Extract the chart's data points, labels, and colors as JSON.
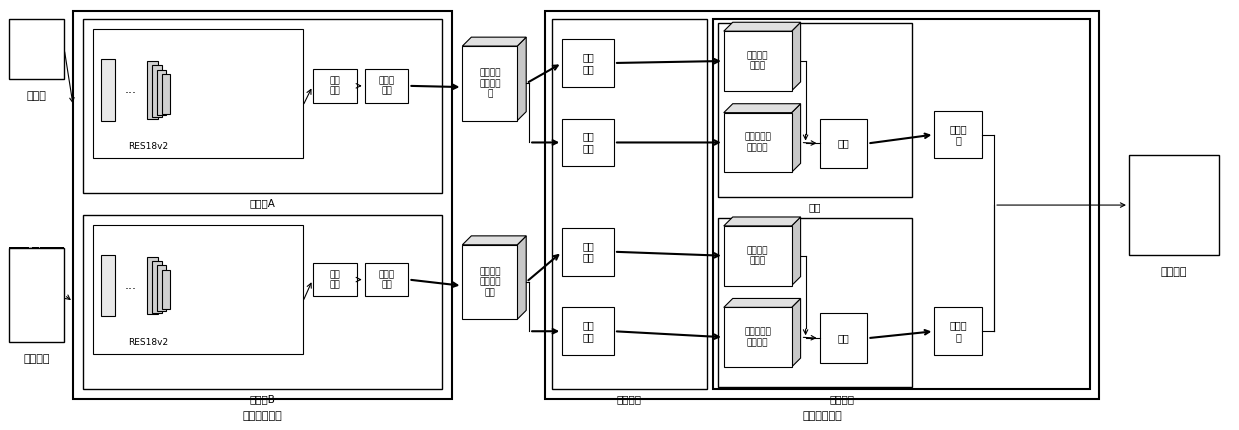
{
  "bg_color": "#ffffff",
  "labels": {
    "mubanju": "模板图",
    "daipipei": "待匹配图",
    "yigou": "异构孪生网络",
    "ziA": "子网络A",
    "ziB": "子网络B",
    "tezhengronghe1": "特征\n融合",
    "zuidazhi1": "最大值\n池化",
    "tezhengronghe2": "特征\n融合",
    "zuidazhi2": "最大值\n池化",
    "gudingmuban": "固定尺寸\n模板特征\n图",
    "gudingdai": "固定尺寸\n待匹配特\n征图",
    "fenlei": "分类",
    "tezhenghuafen": "特征划分",
    "weizhi_huigui": "位置回归",
    "quyupipei": "区域匹配网络",
    "di1juanji": "第一\n卷积",
    "di2juanji": "第二\n卷积",
    "di3juanji": "第三\n卷积",
    "di4juanji": "第四\n卷积",
    "muban_fenlei": "模板分类\n特征图",
    "dai_fenlei": "待匹配图分\n类特征图",
    "juanji_fl": "卷积",
    "pipei_leibie": "匹配类\n别",
    "muban_weizhi": "模板位置\n特征图",
    "dai_weizhi": "待匹配图位\n置特征图",
    "juanji_wz": "卷积",
    "pipei_weizhi": "匹配位\n置",
    "pipeijieguo": "匹配结果",
    "res18v2_a": "RES18v2",
    "res18v2_b": "RES18v2",
    "dots": "..."
  }
}
